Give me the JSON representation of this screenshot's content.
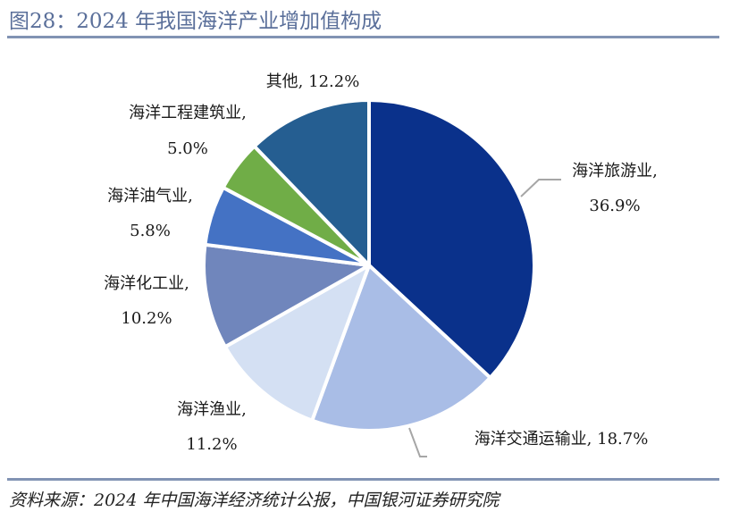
{
  "title": "图28：2024 年我国海洋产业增加值构成",
  "source": "资料来源：2024 年中国海洋经济统计公报，中国银河证券研究院",
  "chart_data": {
    "type": "pie",
    "slices": [
      {
        "name": "海洋旅游业",
        "value": 36.9,
        "value_label": "36.9%",
        "color": "#0a318b"
      },
      {
        "name": "海洋交通运输业",
        "value": 18.7,
        "value_label": "18.7%",
        "color": "#a9bde6"
      },
      {
        "name": "海洋渔业",
        "value": 11.2,
        "value_label": "11.2%",
        "color": "#d4e0f3"
      },
      {
        "name": "海洋化工业",
        "value": 10.2,
        "value_label": "10.2%",
        "color": "#7086bc"
      },
      {
        "name": "海洋油气业",
        "value": 5.8,
        "value_label": "5.8%",
        "color": "#4472c4"
      },
      {
        "name": "海洋工程建筑业",
        "value": 5.0,
        "value_label": "5.0%",
        "color": "#70ad47"
      },
      {
        "name": "其他",
        "value": 12.2,
        "value_label": "12.2%",
        "color": "#255e91"
      }
    ]
  }
}
